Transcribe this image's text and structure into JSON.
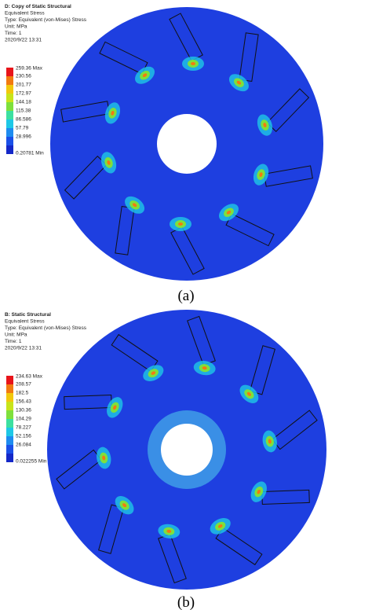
{
  "panels": [
    {
      "header": [
        "D: Copy of Static Structural",
        "Equivalent Stress",
        "Type: Equivalent (von-Mises) Stress",
        "Unit: MPa",
        "Time: 1",
        "2020/9/22 13:31"
      ],
      "legend": [
        "259.36 Max",
        "230.56",
        "201.77",
        "172.97",
        "144.18",
        "115.38",
        "86.586",
        "57.79",
        "28.996",
        "0.20781 Min"
      ],
      "caption": "(a)"
    },
    {
      "header": [
        "B: Static Structural",
        "Equivalent Stress",
        "Type: Equivalent (von-Mises) Stress",
        "Unit: MPa",
        "Time: 1",
        "2020/9/22 13:31"
      ],
      "legend": [
        "234.63 Max",
        "208.57",
        "182.5",
        "156.43",
        "130.36",
        "104.29",
        "78.227",
        "52.156",
        "26.084",
        "0.022255 Min"
      ],
      "caption": "(b)"
    }
  ]
}
